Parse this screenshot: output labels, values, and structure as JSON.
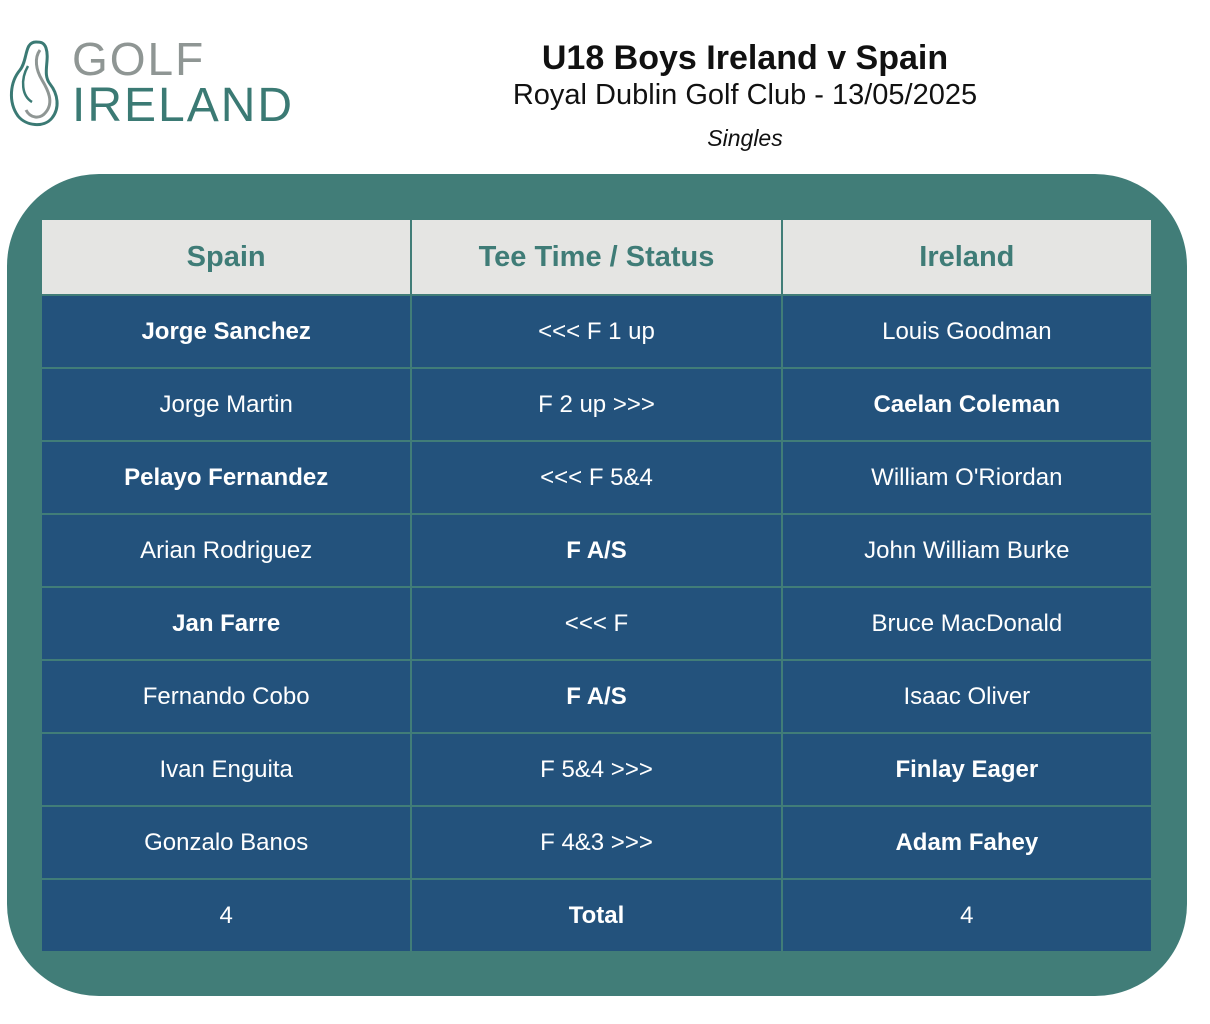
{
  "logo": {
    "line1": "GOLF",
    "line2": "IRELAND"
  },
  "header": {
    "title": "U18 Boys Ireland v Spain",
    "subtitle": "Royal Dublin Golf Club - 13/05/2025",
    "format": "Singles"
  },
  "table": {
    "columns": [
      "Spain",
      "Tee Time / Status",
      "Ireland"
    ],
    "rows": [
      {
        "spain": "Jorge Sanchez",
        "status": "<<< F 1 up",
        "ireland": "Louis Goodman",
        "spain_bold": true,
        "status_bold": false,
        "ireland_bold": false
      },
      {
        "spain": "Jorge Martin",
        "status": "F 2 up >>>",
        "ireland": "Caelan Coleman",
        "spain_bold": false,
        "status_bold": false,
        "ireland_bold": true
      },
      {
        "spain": "Pelayo Fernandez",
        "status": "<<< F 5&4",
        "ireland": "William O'Riordan",
        "spain_bold": true,
        "status_bold": false,
        "ireland_bold": false
      },
      {
        "spain": "Arian Rodriguez",
        "status": "F A/S",
        "ireland": "John William Burke",
        "spain_bold": false,
        "status_bold": true,
        "ireland_bold": false
      },
      {
        "spain": "Jan Farre",
        "status": "<<< F",
        "ireland": "Bruce MacDonald",
        "spain_bold": true,
        "status_bold": false,
        "ireland_bold": false
      },
      {
        "spain": "Fernando Cobo",
        "status": "F A/S",
        "ireland": "Isaac Oliver",
        "spain_bold": false,
        "status_bold": true,
        "ireland_bold": false
      },
      {
        "spain": "Ivan Enguita",
        "status": "F 5&4 >>>",
        "ireland": "Finlay Eager",
        "spain_bold": false,
        "status_bold": false,
        "ireland_bold": true
      },
      {
        "spain": "Gonzalo Banos",
        "status": "F 4&3 >>>",
        "ireland": "Adam Fahey",
        "spain_bold": false,
        "status_bold": false,
        "ireland_bold": true
      }
    ],
    "total": {
      "spain": "4",
      "label": "Total",
      "ireland": "4"
    }
  },
  "colors": {
    "panel": "#417d78",
    "header_bg": "#e5e5e3",
    "header_text": "#3f7c77",
    "cell_bg": "#23527c",
    "cell_text": "#ffffff"
  }
}
